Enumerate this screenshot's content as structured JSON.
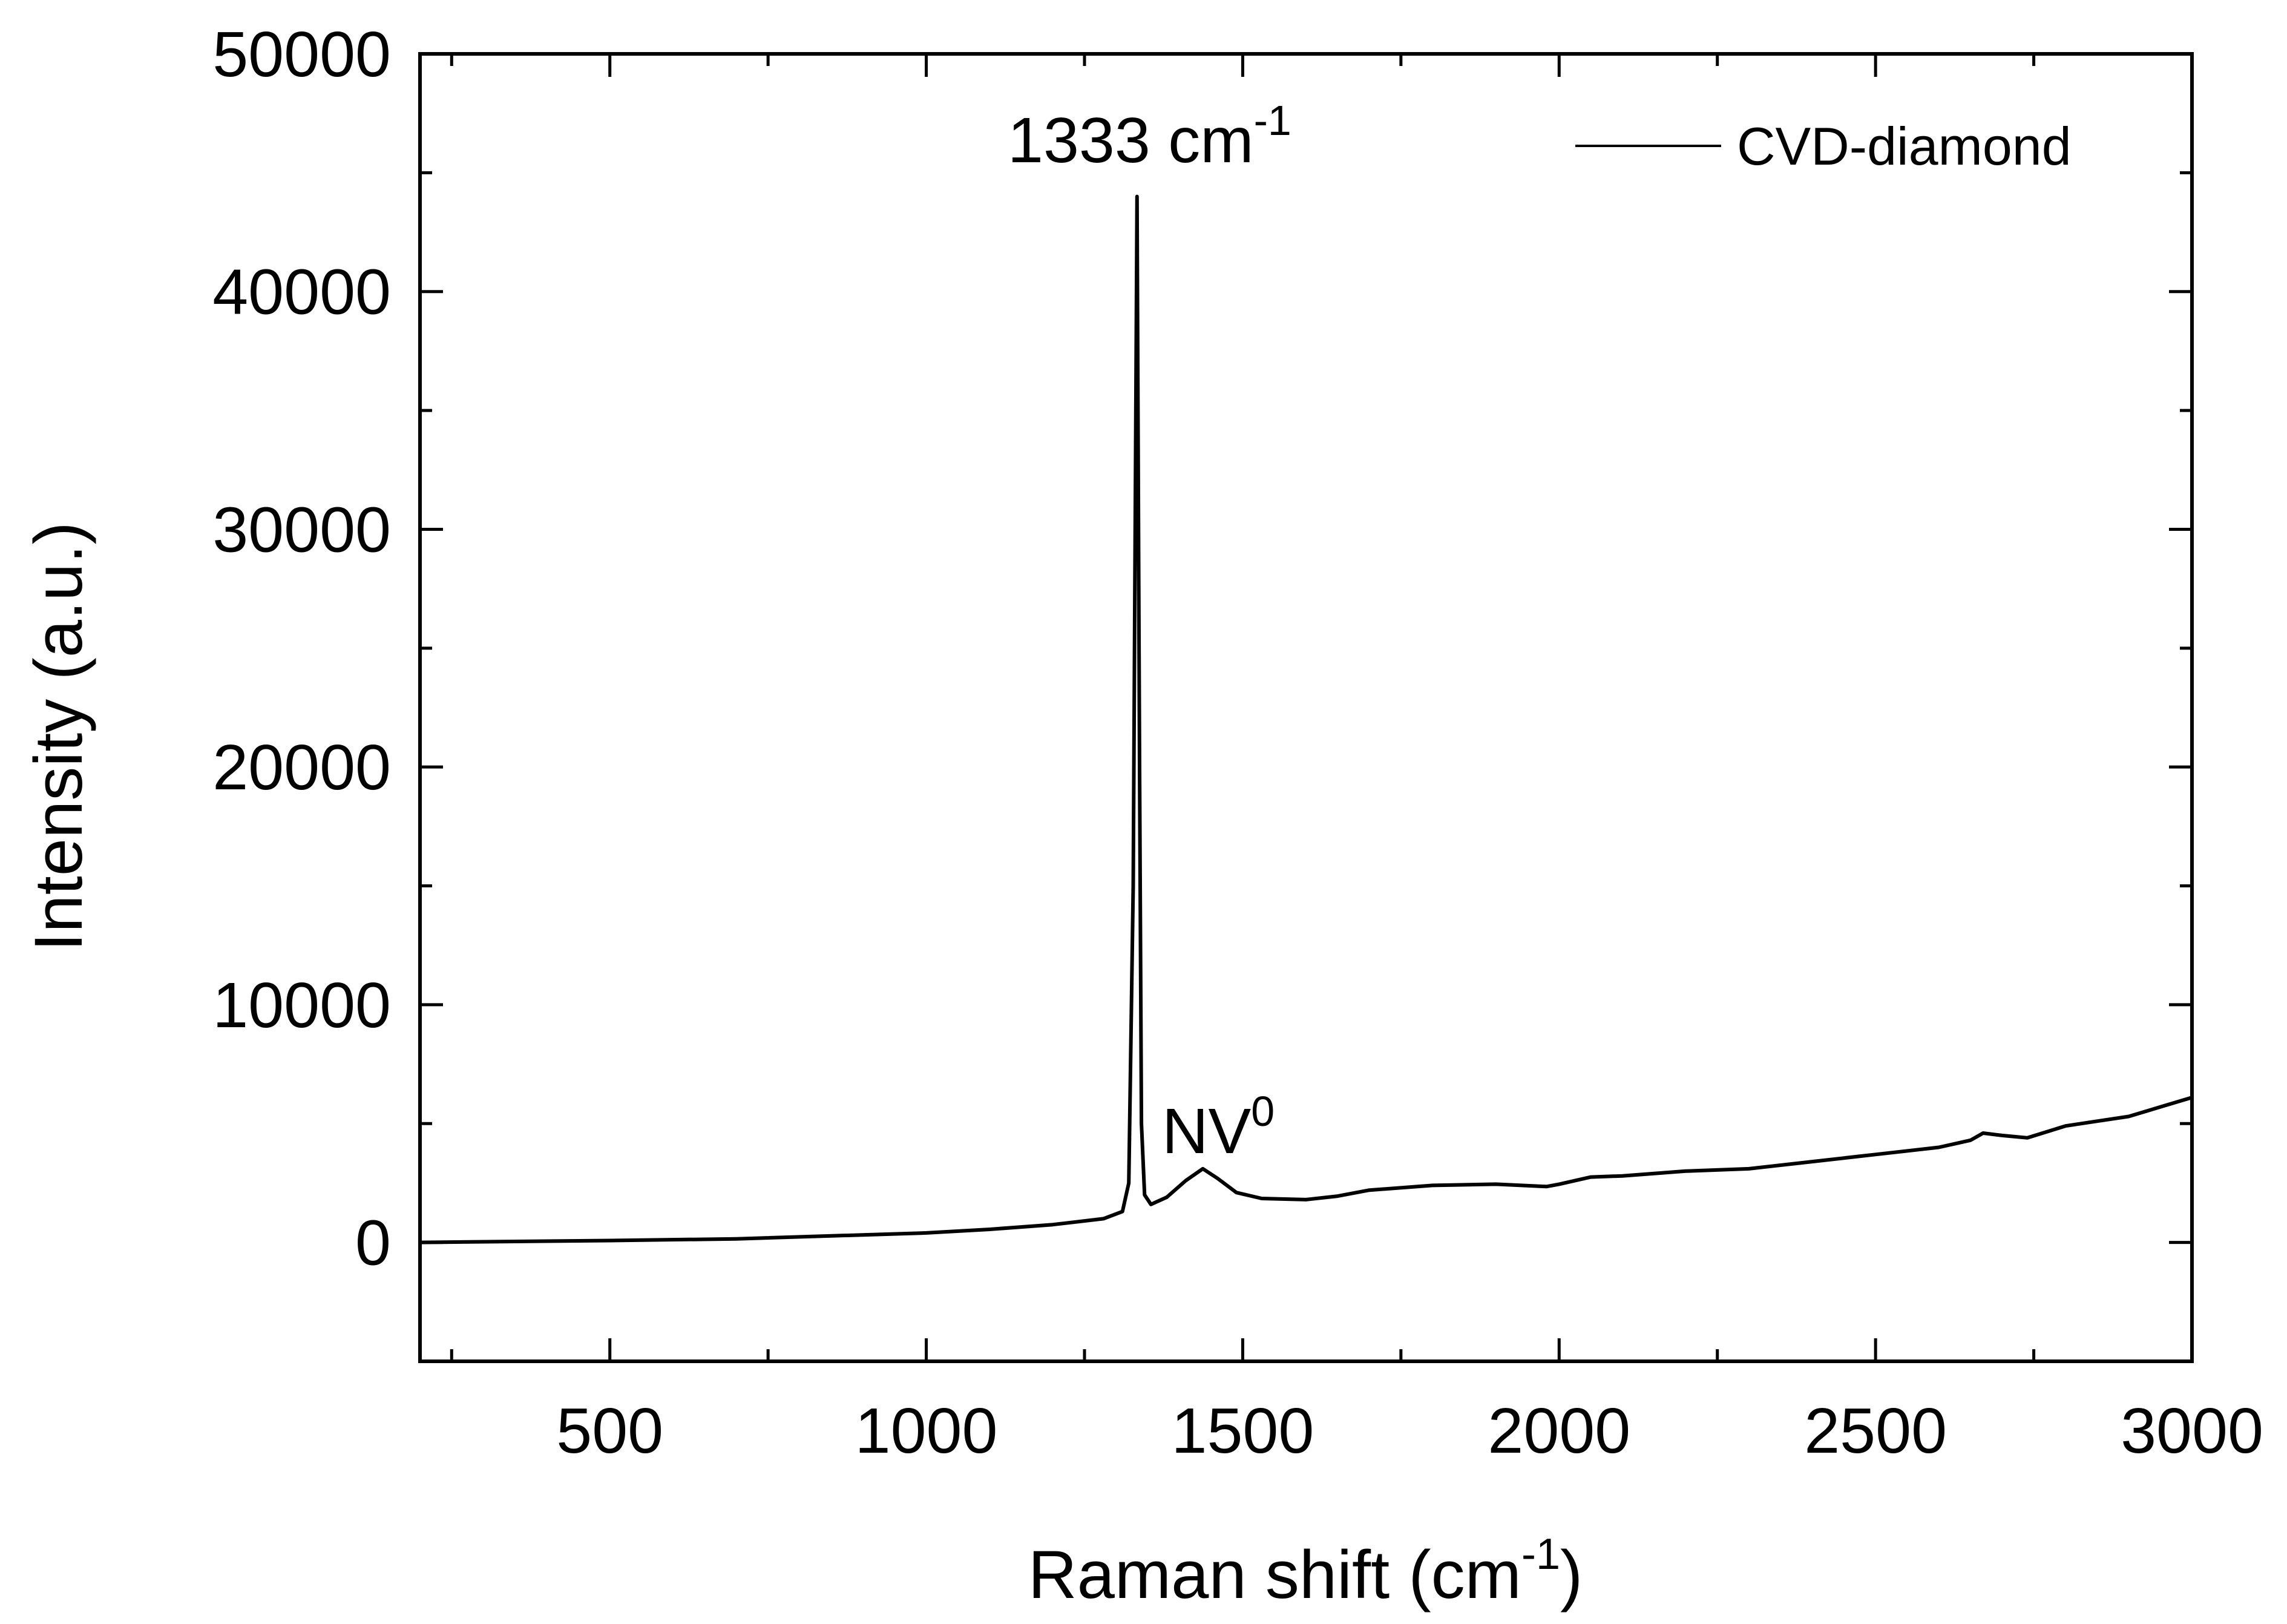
{
  "chart_data": {
    "type": "line",
    "title": "",
    "xlabel": "Raman shift (cm",
    "xlabel_sup": "-1",
    "xlabel_end": ")",
    "ylabel": "Intensity (a.u.)",
    "xlim": [
      200,
      3000
    ],
    "ylim": [
      -5000,
      50000
    ],
    "xticks": [
      500,
      1000,
      1500,
      2000,
      2500,
      3000
    ],
    "xtick_labels": [
      "500",
      "1000",
      "1500",
      "2000",
      "2500",
      "3000"
    ],
    "yticks": [
      0,
      10000,
      20000,
      30000,
      40000,
      50000
    ],
    "ytick_labels": [
      "0",
      "10000",
      "20000",
      "30000",
      "40000",
      "50000"
    ],
    "x_minor_step": 250,
    "y_minor_step": 5000,
    "grid": false,
    "legend": {
      "placement": "top-right",
      "entries": [
        "CVD-diamond"
      ]
    },
    "annotations": [
      {
        "text": "1333 cm",
        "sup": "-1",
        "x": 1333,
        "y": 44000
      },
      {
        "text": "NV",
        "sup": "0",
        "x": 1437,
        "y": 3100
      }
    ],
    "series": [
      {
        "name": "CVD-diamond",
        "color": "#000000",
        "x": [
          200,
          500,
          700,
          1000,
          1100,
          1200,
          1280,
          1310,
          1320,
          1327,
          1333,
          1337,
          1340,
          1345,
          1355,
          1380,
          1410,
          1437,
          1460,
          1490,
          1530,
          1600,
          1650,
          1700,
          1800,
          1900,
          1980,
          2000,
          2050,
          2100,
          2200,
          2300,
          2400,
          2500,
          2600,
          2650,
          2670,
          2700,
          2740,
          2800,
          2850,
          2900,
          2950,
          3000
        ],
        "y": [
          0,
          80,
          150,
          400,
          550,
          750,
          1000,
          1300,
          2500,
          15000,
          44000,
          20000,
          5000,
          2000,
          1600,
          1900,
          2600,
          3100,
          2700,
          2100,
          1850,
          1800,
          1950,
          2200,
          2400,
          2450,
          2350,
          2450,
          2750,
          2800,
          3000,
          3100,
          3400,
          3700,
          4000,
          4300,
          4600,
          4500,
          4400,
          4900,
          5100,
          5300,
          5700,
          6100
        ]
      }
    ]
  }
}
